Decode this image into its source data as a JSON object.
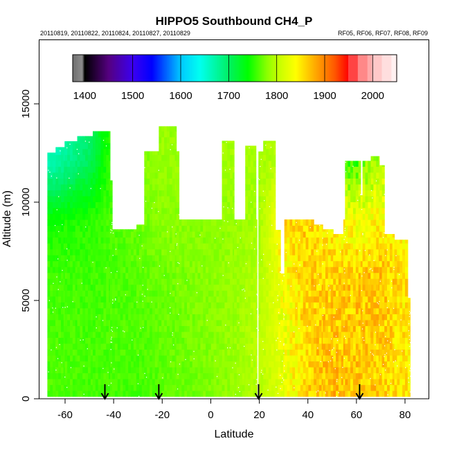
{
  "chart_data": {
    "type": "heatmap",
    "title": "HIPPO5 Southbound CH4_P",
    "subtitle_left": "20110819, 20110822, 20110824, 20110827, 20110829",
    "subtitle_right": "RF05, RF06, RF07, RF08, RF09",
    "xlabel": "Latitude",
    "ylabel": "Altitude (m)",
    "xlim": [
      -60,
      80
    ],
    "ylim": [
      0,
      15000
    ],
    "x_ticks": [
      -60,
      -40,
      -20,
      0,
      20,
      40,
      60,
      80
    ],
    "x_tick_labels": [
      "-60",
      "-40",
      "-20",
      "0",
      "20",
      "40",
      "60",
      "80"
    ],
    "y_ticks": [
      0,
      5000,
      10000,
      15000
    ],
    "y_tick_labels": [
      "0",
      "5000",
      "10000",
      "15000"
    ],
    "colorbar": {
      "range": [
        1375,
        2050
      ],
      "ticks": [
        1400,
        1500,
        1600,
        1700,
        1800,
        1900,
        2000
      ],
      "tick_labels": [
        "1400",
        "1500",
        "1600",
        "1700",
        "1800",
        "1900",
        "2000"
      ]
    },
    "arrows_latitude": [
      -43.6,
      -21.4,
      19.7,
      61.3
    ],
    "data_bottom_altitude": 120,
    "columns": [
      {
        "lat": [
          -67.3,
          -63.9
        ],
        "top": 12520
      },
      {
        "lat": [
          -63.9,
          -60.2
        ],
        "top": 12800
      },
      {
        "lat": [
          -60.2,
          -55.0
        ],
        "top": 13100
      },
      {
        "lat": [
          -55.0,
          -48.6
        ],
        "top": 13360
      },
      {
        "lat": [
          -48.6,
          -41.5
        ],
        "top": 13610
      },
      {
        "lat": [
          -41.5,
          -40.6
        ],
        "top": 11110
      },
      {
        "lat": [
          -40.6,
          -30.6
        ],
        "top": 8620
      },
      {
        "lat": [
          -30.6,
          -27.4
        ],
        "top": 8860
      },
      {
        "lat": [
          -27.4,
          -21.4
        ],
        "top": 12590
      },
      {
        "lat": [
          -21.4,
          -14.2
        ],
        "top": 13860
      },
      {
        "lat": [
          -14.2,
          -13.1
        ],
        "top": 12590
      },
      {
        "lat": [
          -13.1,
          4.6
        ],
        "top": 9120
      },
      {
        "lat": [
          4.6,
          9.6
        ],
        "top": 13120
      },
      {
        "lat": [
          9.6,
          14.2
        ],
        "top": 9120
      },
      {
        "lat": [
          14.2,
          18.6
        ],
        "top": 12870
      },
      {
        "lat": [
          18.6,
          19.4
        ],
        "top": 9120
      },
      {
        "lat": [
          19.4,
          21.6
        ],
        "top": 12580
      },
      {
        "lat": [
          21.6,
          26.6
        ],
        "top": 13120
      },
      {
        "lat": [
          26.6,
          28.7
        ],
        "top": 8590
      },
      {
        "lat": [
          28.7,
          30.3
        ],
        "top": 6370
      },
      {
        "lat": [
          30.3,
          42.4
        ],
        "top": 9120
      },
      {
        "lat": [
          42.4,
          46.1
        ],
        "top": 8860
      },
      {
        "lat": [
          46.1,
          50.4
        ],
        "top": 8620
      },
      {
        "lat": [
          50.4,
          54.6
        ],
        "top": 8380
      },
      {
        "lat": [
          54.6,
          55.3
        ],
        "top": 9120
      },
      {
        "lat": [
          55.3,
          61.7
        ],
        "top": 12100
      },
      {
        "lat": [
          61.7,
          62.5
        ],
        "top": 10350
      },
      {
        "lat": [
          62.5,
          65.9
        ],
        "top": 12100
      },
      {
        "lat": [
          65.9,
          69.4
        ],
        "top": 12340
      },
      {
        "lat": [
          69.4,
          71.5
        ],
        "top": 11880
      },
      {
        "lat": [
          71.5,
          75.6
        ],
        "top": 8380
      },
      {
        "lat": [
          75.6,
          81.1
        ],
        "top": 8090
      },
      {
        "lat": [
          81.1,
          82.1
        ],
        "top": 5130
      }
    ],
    "ch4_grid": {
      "lat": [
        -65,
        -50,
        -40,
        -30,
        -20,
        -10,
        0,
        10,
        20,
        30,
        40,
        50,
        60,
        70,
        80
      ],
      "alt": [
        0,
        3000,
        6000,
        9000,
        12000,
        14000
      ],
      "values": [
        [
          1762,
          1760,
          1760,
          1758,
          1765,
          1770,
          1775,
          1785,
          1795,
          1820,
          1860,
          1872,
          1868,
          1862,
          1845
        ],
        [
          1762,
          1760,
          1762,
          1762,
          1768,
          1772,
          1778,
          1785,
          1800,
          1828,
          1858,
          1866,
          1862,
          1862,
          1852
        ],
        [
          1760,
          1758,
          1760,
          1765,
          1770,
          1775,
          1780,
          1785,
          1795,
          1832,
          1862,
          1862,
          1866,
          1870,
          1850
        ],
        [
          1745,
          1752,
          1762,
          1770,
          1780,
          1780,
          1780,
          1785,
          1790,
          1852,
          1862,
          1842,
          1832,
          1842,
          1840
        ],
        [
          1668,
          1705,
          1762,
          1775,
          1785,
          1785,
          1785,
          1790,
          1790,
          1800,
          1800,
          1758,
          1762,
          1800,
          1800
        ],
        [
          1650,
          1695,
          1762,
          1775,
          1785,
          1785,
          1785,
          1790,
          1790,
          1800,
          1800,
          1758,
          1762,
          1800,
          1800
        ]
      ]
    }
  }
}
